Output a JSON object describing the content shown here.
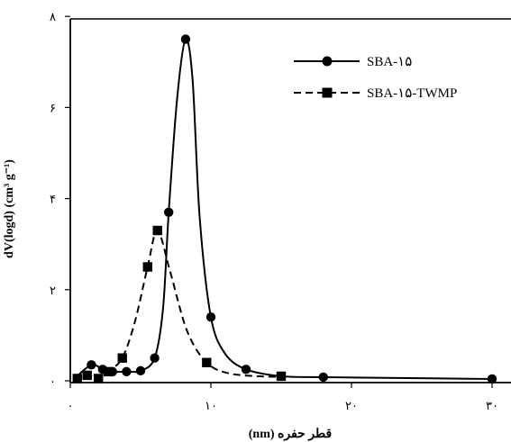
{
  "chart_data": {
    "type": "line",
    "xlabel": "قطر حفره (nm)",
    "ylabel": "dV(logd) (cm³ g⁻¹)",
    "xlim": [
      0,
      30
    ],
    "ylim": [
      0,
      8
    ],
    "x_ticks": [
      0,
      10,
      20,
      30
    ],
    "x_tick_labels": [
      "۰",
      "۱۰",
      "۲۰",
      "۳۰"
    ],
    "y_ticks": [
      0,
      2,
      4,
      6,
      8
    ],
    "y_tick_labels": [
      "۰",
      "۲",
      "۴",
      "۶",
      "۸"
    ],
    "grid": false,
    "legend_position": "top-right",
    "series": [
      {
        "name": "SBA-۱۵",
        "line_style": "solid",
        "marker": "circle",
        "color": "#000000",
        "points": [
          [
            0.5,
            0.05
          ],
          [
            1.5,
            0.35
          ],
          [
            2.3,
            0.25
          ],
          [
            3,
            0.2
          ],
          [
            4,
            0.2
          ],
          [
            5,
            0.22
          ],
          [
            6,
            0.5
          ],
          [
            7,
            3.7
          ],
          [
            8.2,
            7.5
          ],
          [
            10,
            1.4
          ],
          [
            12.5,
            0.25
          ],
          [
            15,
            0.1
          ],
          [
            18,
            0.08
          ],
          [
            30,
            0.04
          ]
        ],
        "curve_points": [
          [
            0.3,
            0.05
          ],
          [
            1.5,
            0.35
          ],
          [
            2.3,
            0.25
          ],
          [
            3,
            0.2
          ],
          [
            4,
            0.2
          ],
          [
            5,
            0.22
          ],
          [
            6,
            0.5
          ],
          [
            6.6,
            1.6
          ],
          [
            7,
            3.7
          ],
          [
            7.6,
            6.2
          ],
          [
            8.2,
            7.5
          ],
          [
            8.7,
            6.6
          ],
          [
            9.2,
            3.6
          ],
          [
            10,
            1.4
          ],
          [
            11,
            0.6
          ],
          [
            12.5,
            0.25
          ],
          [
            15,
            0.1
          ],
          [
            18,
            0.08
          ],
          [
            24,
            0.06
          ],
          [
            30,
            0.04
          ]
        ]
      },
      {
        "name": "SBA-۱۵-TWMP",
        "line_style": "dashed",
        "marker": "square",
        "color": "#000000",
        "points": [
          [
            0.5,
            0.05
          ],
          [
            1.2,
            0.12
          ],
          [
            2.0,
            0.05
          ],
          [
            2.7,
            0.2
          ],
          [
            3.7,
            0.5
          ],
          [
            5.5,
            2.5
          ],
          [
            6.2,
            3.3
          ],
          [
            9.7,
            0.4
          ],
          [
            15,
            0.1
          ]
        ],
        "curve_points": [
          [
            0.3,
            0.0
          ],
          [
            1.2,
            0.12
          ],
          [
            2.0,
            0.05
          ],
          [
            2.7,
            0.2
          ],
          [
            3.7,
            0.5
          ],
          [
            4.6,
            1.3
          ],
          [
            5.5,
            2.5
          ],
          [
            6.2,
            3.3
          ],
          [
            7.1,
            2.4
          ],
          [
            8.3,
            1.1
          ],
          [
            9.7,
            0.4
          ],
          [
            11.5,
            0.15
          ],
          [
            15,
            0.08
          ]
        ]
      }
    ]
  }
}
